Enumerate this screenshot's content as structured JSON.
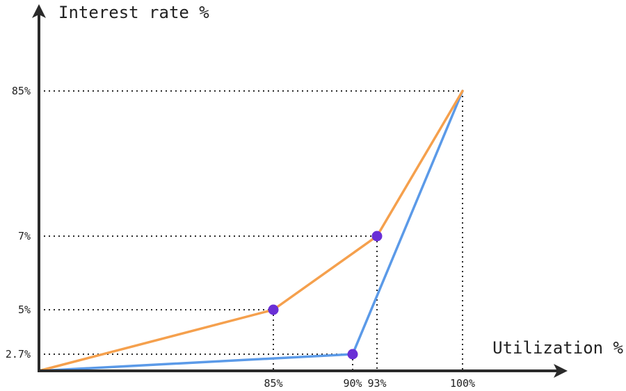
{
  "chart_data": {
    "type": "line",
    "title": "",
    "xlabel": "Utilization %",
    "ylabel": "Interest rate %",
    "colors": {
      "axis": "#2a2a2a",
      "guide": "#2a2a2a",
      "marker": "#6a2fd6"
    },
    "x_ticks": [
      {
        "label": "85%",
        "value": 85
      },
      {
        "label": "90%",
        "value": 90
      },
      {
        "label": "93%",
        "value": 93
      },
      {
        "label": "100%",
        "value": 100
      }
    ],
    "y_ticks": [
      {
        "label": "2.7%",
        "value": 2.7
      },
      {
        "label": "5%",
        "value": 5
      },
      {
        "label": "7%",
        "value": 7
      },
      {
        "label": "85%",
        "value": 85
      }
    ],
    "series": [
      {
        "name": "orange-curve",
        "color": "#f5a04d",
        "points": [
          {
            "x": 0,
            "y": 0
          },
          {
            "x": 85,
            "y": 5
          },
          {
            "x": 93,
            "y": 7
          },
          {
            "x": 100,
            "y": 85
          }
        ],
        "kinks": [
          {
            "x": 85,
            "y": 5
          },
          {
            "x": 93,
            "y": 7
          }
        ]
      },
      {
        "name": "blue-curve",
        "color": "#5b9ae8",
        "points": [
          {
            "x": 0,
            "y": 0
          },
          {
            "x": 90,
            "y": 2.7
          },
          {
            "x": 100,
            "y": 85
          }
        ],
        "kinks": [
          {
            "x": 90,
            "y": 2.7
          }
        ]
      }
    ],
    "guides": [
      {
        "x": 85,
        "y": 5
      },
      {
        "x": 90,
        "y": 2.7
      },
      {
        "x": 93,
        "y": 7
      },
      {
        "x": 100,
        "y": 85
      }
    ]
  }
}
